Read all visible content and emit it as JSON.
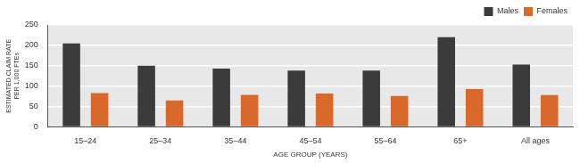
{
  "chart_data": {
    "type": "bar",
    "xlabel": "AGE GROUP (YEARS)",
    "ylabel": [
      "ESTIMATED CLAIM RATE",
      "PER 1,000 FTEs"
    ],
    "categories": [
      "15–24",
      "25–34",
      "35–44",
      "45–54",
      "55–64",
      "65+",
      "All ages"
    ],
    "series": [
      {
        "name": "Males",
        "color": "#3b3b3b",
        "values": [
          205,
          150,
          143,
          138,
          138,
          220,
          153
        ]
      },
      {
        "name": "Females",
        "color": "#d9692a",
        "values": [
          83,
          65,
          79,
          82,
          76,
          93,
          78
        ]
      }
    ],
    "ylim": [
      0,
      250
    ],
    "yticks": [
      0,
      50,
      100,
      150,
      200,
      250
    ],
    "grid": true,
    "legend": "upper right"
  }
}
